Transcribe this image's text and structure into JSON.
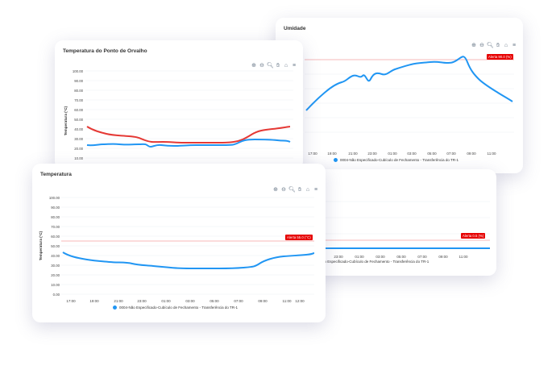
{
  "umidade": {
    "title": "Umidade",
    "alert": "Alerta 90.0 (%)",
    "legend": "0004-Não Especificado-Cubículo de Fechamento - Transferência do TR-1",
    "x_ticks": [
      "17:00",
      "19:00",
      "21:00",
      "23:00",
      "01:00",
      "03:00",
      "05:00",
      "07:00",
      "09:00",
      "11:00"
    ]
  },
  "back_right": {
    "alert": "Alerta 0.5 (%)",
    "legend_fragment": "ão Especificado-Cubículo de Fechamento - Transferência do TR-1",
    "x_ticks": [
      "23:00",
      "01:00",
      "03:00",
      "05:00",
      "07:00",
      "09:00",
      "11:00"
    ]
  },
  "orvalho": {
    "title": "Temperatura do Ponto de Orvalho",
    "ylabel": "Temperatura (°C)",
    "y_ticks": [
      "100.00",
      "90.00",
      "80.00",
      "70.00",
      "60.00",
      "50.00",
      "40.00",
      "30.00",
      "20.00",
      "10.00"
    ]
  },
  "temperatura": {
    "title": "Temperatura",
    "ylabel": "Temperatura (°C)",
    "alert": "Alerta 55.0 (°C)",
    "legend": "0004-Não Especificado-Cubículo de Fechamento - Transferência do TR-1",
    "y_ticks": [
      "100.00",
      "90.00",
      "80.00",
      "70.00",
      "60.00",
      "50.00",
      "40.00",
      "30.00",
      "20.00",
      "10.00",
      "0.00"
    ],
    "x_ticks": [
      "17:00",
      "19:00",
      "21:00",
      "23:00",
      "01:00",
      "03:00",
      "05:00",
      "07:00",
      "09:00",
      "11:00",
      "12:00"
    ]
  },
  "toolbar_icons": [
    "zoom-in-icon",
    "zoom-out-icon",
    "magnify-icon",
    "pan-hand-icon",
    "home-icon",
    "menu-icon"
  ],
  "colors": {
    "series_blue": "#2196f3",
    "series_red": "#e53935",
    "alert_red": "#e60000",
    "alert_line": "#f4a3a3"
  },
  "chart_data": [
    {
      "type": "line",
      "title": "Umidade",
      "categories": [
        "17:00",
        "19:00",
        "21:00",
        "23:00",
        "01:00",
        "03:00",
        "05:00",
        "07:00",
        "09:00",
        "11:00"
      ],
      "series": [
        {
          "name": "0004-Não Especificado-Cubículo de Fechamento - Transferência do TR-1",
          "values": [
            60,
            72,
            80,
            78,
            82,
            86,
            87,
            88,
            93,
            70
          ]
        }
      ],
      "threshold": 90
    },
    {
      "type": "line",
      "title": "Temperatura do Ponto de Orvalho",
      "ylabel": "Temperatura (°C)",
      "ylim": [
        10,
        100
      ],
      "series": [
        {
          "values": [
            42,
            37,
            33,
            29,
            26,
            26,
            27,
            28,
            36,
            42
          ]
        },
        {
          "values": [
            26,
            27,
            26,
            24,
            23,
            23,
            24,
            25,
            30,
            28
          ]
        }
      ]
    },
    {
      "type": "line",
      "title": "Temperatura",
      "ylabel": "Temperatura (°C)",
      "categories": [
        "17:00",
        "19:00",
        "21:00",
        "23:00",
        "01:00",
        "03:00",
        "05:00",
        "07:00",
        "09:00",
        "11:00",
        "12:00"
      ],
      "ylim": [
        0,
        100
      ],
      "series": [
        {
          "name": "0004-Não Especificado-Cubículo de Fechamento - Transferência do TR-1",
          "values": [
            43,
            37,
            34,
            32,
            28,
            27,
            27,
            28,
            32,
            40,
            42
          ]
        }
      ],
      "threshold": 55
    }
  ]
}
